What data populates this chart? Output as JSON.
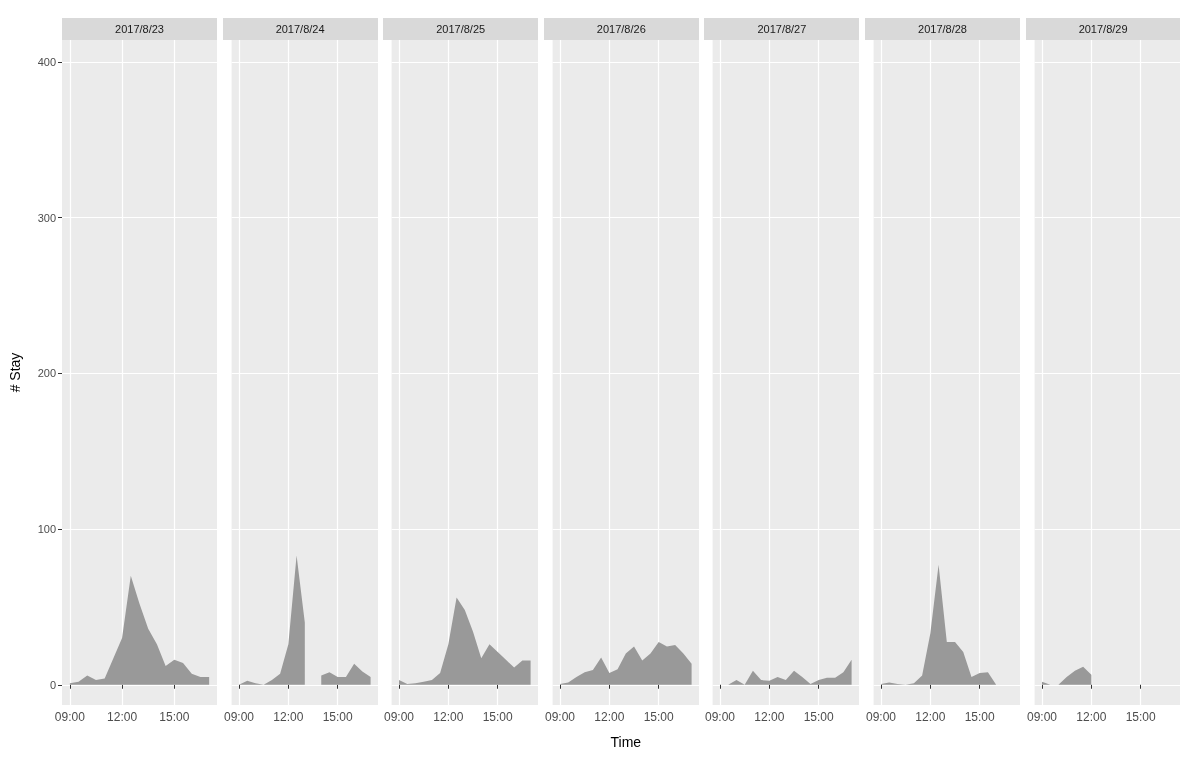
{
  "chart_data": [
    {
      "type": "area",
      "title": "2017/8/23",
      "ylabel": "# Stay",
      "color": "#999999",
      "grid": true,
      "x": [
        9,
        9.5,
        10,
        10.5,
        11,
        11.5,
        12,
        12.5,
        13,
        13.5,
        14,
        14.5,
        15,
        15.5,
        16,
        16.5,
        17
      ],
      "values": [
        1,
        2,
        6,
        3,
        4,
        17,
        30,
        70,
        52,
        36,
        26,
        12,
        16,
        14,
        7,
        5,
        5
      ],
      "xlim": [
        8.55,
        17.45
      ],
      "xticks": [
        {
          "value": 9,
          "label": "09:00"
        },
        {
          "value": 12,
          "label": "12:00"
        },
        {
          "value": 15,
          "label": "15:00"
        }
      ],
      "ylim": [
        -13,
        414
      ],
      "yticks": [
        0,
        100,
        200,
        300,
        400
      ]
    },
    {
      "type": "area",
      "title": "2017/8/24",
      "color": "#999999",
      "grid": true,
      "tick_labels": "x",
      "x": [
        9,
        9.5,
        10,
        10.5,
        11,
        11.5,
        12,
        12.5,
        13,
        13.5,
        14,
        14.5,
        15,
        15.5,
        16,
        16.5,
        17
      ],
      "values": [
        0,
        2.5,
        1,
        0,
        3,
        7,
        26,
        83,
        40,
        null,
        6,
        8,
        5,
        5,
        13.5,
        8.5,
        5
      ],
      "xlim": [
        8.55,
        17.45
      ],
      "xticks": [
        {
          "value": 9,
          "label": "09:00"
        },
        {
          "value": 12,
          "label": "12:00"
        },
        {
          "value": 15,
          "label": "15:00"
        }
      ],
      "ylim": [
        -13,
        414
      ],
      "yticks": [
        0,
        100,
        200,
        300,
        400
      ]
    },
    {
      "type": "area",
      "title": "2017/8/25",
      "color": "#999999",
      "grid": true,
      "tick_labels": "x",
      "x": [
        9,
        9.5,
        10,
        10.5,
        11,
        11.5,
        12,
        12.5,
        13,
        13.5,
        14,
        14.5,
        15,
        15.5,
        16,
        16.5,
        17
      ],
      "values": [
        3,
        0.5,
        1,
        2,
        3,
        7.5,
        26,
        56,
        48,
        34,
        17,
        26,
        21,
        16,
        11,
        15.5,
        15.5
      ],
      "xlim": [
        8.55,
        17.45
      ],
      "xticks": [
        {
          "value": 9,
          "label": "09:00"
        },
        {
          "value": 12,
          "label": "12:00"
        },
        {
          "value": 15,
          "label": "15:00"
        }
      ],
      "ylim": [
        -13,
        414
      ],
      "yticks": [
        0,
        100,
        200,
        300,
        400
      ]
    },
    {
      "type": "area",
      "title": "2017/8/26",
      "xlabel": "Time",
      "color": "#999999",
      "grid": true,
      "tick_labels": "x",
      "x": [
        9,
        9.5,
        10,
        10.5,
        11,
        11.5,
        12,
        12.5,
        13,
        13.5,
        14,
        14.5,
        15,
        15.5,
        16,
        16.5,
        17
      ],
      "values": [
        0.5,
        1.5,
        5,
        8,
        9.5,
        17.5,
        7.5,
        10,
        20,
        24.5,
        15.5,
        20,
        27.5,
        24.5,
        25.5,
        20,
        13.5
      ],
      "xlim": [
        8.55,
        17.45
      ],
      "xticks": [
        {
          "value": 9,
          "label": "09:00"
        },
        {
          "value": 12,
          "label": "12:00"
        },
        {
          "value": 15,
          "label": "15:00"
        }
      ],
      "ylim": [
        -13,
        414
      ],
      "yticks": [
        0,
        100,
        200,
        300,
        400
      ]
    },
    {
      "type": "area",
      "title": "2017/8/27",
      "color": "#999999",
      "grid": true,
      "tick_labels": "x",
      "x": [
        9.5,
        10,
        10.5,
        11,
        11.5,
        12,
        12.5,
        13,
        13.5,
        14,
        14.5,
        15,
        15.5,
        16,
        16.5,
        17
      ],
      "values": [
        0,
        3,
        0,
        9,
        3,
        2.5,
        5,
        3,
        9,
        5,
        0.5,
        3,
        4.5,
        4.5,
        8,
        16
      ],
      "xlim": [
        8.55,
        17.45
      ],
      "xticks": [
        {
          "value": 9,
          "label": "09:00"
        },
        {
          "value": 12,
          "label": "12:00"
        },
        {
          "value": 15,
          "label": "15:00"
        }
      ],
      "ylim": [
        -13,
        414
      ],
      "yticks": [
        0,
        100,
        200,
        300,
        400
      ]
    },
    {
      "type": "area",
      "title": "2017/8/28",
      "color": "#999999",
      "grid": true,
      "tick_labels": "x",
      "x": [
        9,
        9.5,
        10,
        10.5,
        11,
        11.5,
        12,
        12.5,
        13,
        13.5,
        14,
        14.5,
        15,
        15.5,
        16
      ],
      "values": [
        0.5,
        1.5,
        0.5,
        0,
        1,
        6,
        33,
        77,
        27.5,
        27.5,
        21,
        5,
        7.5,
        8,
        0
      ],
      "xlim": [
        8.55,
        17.45
      ],
      "xticks": [
        {
          "value": 9,
          "label": "09:00"
        },
        {
          "value": 12,
          "label": "12:00"
        },
        {
          "value": 15,
          "label": "15:00"
        }
      ],
      "ylim": [
        -13,
        414
      ],
      "yticks": [
        0,
        100,
        200,
        300,
        400
      ]
    },
    {
      "type": "area",
      "title": "2017/8/29",
      "color": "#999999",
      "grid": true,
      "tick_labels": "x",
      "x": [
        9,
        9.5,
        10,
        10.5,
        11,
        11.5,
        12
      ],
      "values": [
        2,
        0,
        0,
        5,
        9,
        11.5,
        6.5
      ],
      "xlim": [
        8.55,
        17.45
      ],
      "xticks": [
        {
          "value": 9,
          "label": "09:00"
        },
        {
          "value": 12,
          "label": "12:00"
        },
        {
          "value": 15,
          "label": "15:00"
        }
      ],
      "ylim": [
        -13,
        414
      ],
      "yticks": [
        0,
        100,
        200,
        300,
        400
      ]
    }
  ]
}
